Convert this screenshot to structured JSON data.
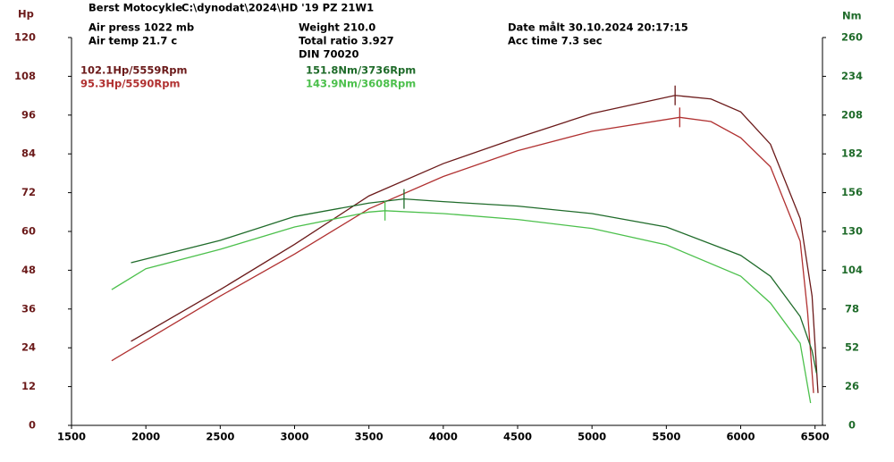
{
  "chart_data": {
    "type": "line",
    "header": {
      "shop": "Berst Motocykle",
      "file": "C:\\dynodat\\2024\\HD '19 PZ 21W1",
      "air_press": "Air press  1022 mb",
      "air_temp": "Air temp  21.7 c",
      "weight": "Weight     210.0",
      "ratio": "Total ratio 3.927",
      "standard": "DIN 70020",
      "date": "Date målt 30.10.2024 20:17:15",
      "acc_time": "Acc time  7.3 sec"
    },
    "y_label": "Hp",
    "y2_label": "Nm",
    "xlim": [
      1500,
      6550
    ],
    "xticks": [
      1500,
      2000,
      2500,
      3000,
      3500,
      4000,
      4500,
      5000,
      5500,
      6000,
      6500
    ],
    "ylim": [
      0,
      120
    ],
    "yticks": [
      0,
      12,
      24,
      36,
      48,
      60,
      72,
      84,
      96,
      108,
      120
    ],
    "y2lim": [
      0,
      260
    ],
    "y2ticks": [
      0,
      26,
      52,
      78,
      104,
      130,
      156,
      182,
      208,
      234,
      260
    ],
    "series": [
      {
        "name": "102.1Hp/5559Rpm",
        "color": "#6b1a1a",
        "axis": "y",
        "x": [
          1900,
          2500,
          3000,
          3500,
          4000,
          4500,
          5000,
          5559,
          5800,
          6000,
          6200,
          6400,
          6480,
          6520
        ],
        "values": [
          26,
          42,
          56,
          71,
          81,
          89,
          96.5,
          102.1,
          101,
          97,
          87,
          64,
          40,
          10
        ]
      },
      {
        "name": "95.3Hp/5590Rpm",
        "color": "#b03030",
        "axis": "y",
        "x": [
          1770,
          2500,
          3000,
          3500,
          4000,
          4500,
          5000,
          5590,
          5800,
          6000,
          6200,
          6400,
          6450,
          6490
        ],
        "values": [
          20,
          40,
          53,
          67,
          77,
          85,
          91,
          95.3,
          94,
          89,
          80,
          57,
          35,
          10
        ]
      },
      {
        "name": "151.8Nm/3736Rpm",
        "color": "#1f6b2a",
        "axis": "y2",
        "x": [
          1900,
          2500,
          3000,
          3500,
          3736,
          4000,
          4500,
          5000,
          5500,
          6000,
          6200,
          6400,
          6480,
          6510
        ],
        "values": [
          109,
          124,
          140,
          149,
          151.8,
          150,
          147,
          142,
          133,
          114,
          100,
          73,
          50,
          35
        ]
      },
      {
        "name": "143.9Nm/3608Rpm",
        "color": "#4cc04c",
        "axis": "y2",
        "x": [
          1770,
          2000,
          2500,
          3000,
          3500,
          3608,
          4000,
          4500,
          5000,
          5500,
          6000,
          6200,
          6400,
          6470
        ],
        "values": [
          91,
          105,
          118,
          133,
          143,
          143.9,
          142,
          138,
          132,
          121,
          100,
          82,
          55,
          15
        ]
      }
    ]
  }
}
